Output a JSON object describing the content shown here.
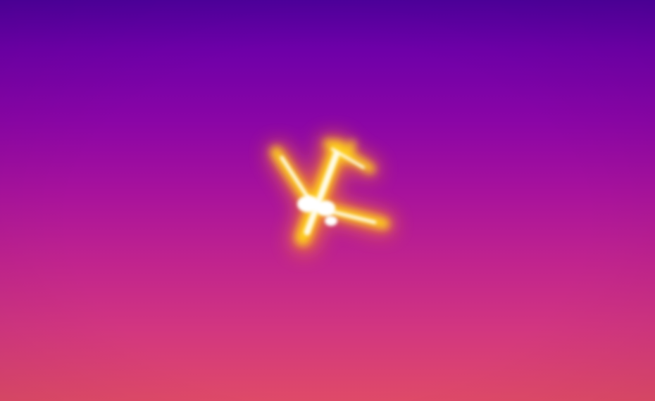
{
  "scene": {
    "subject": "airplane-silhouette",
    "style": "thermal-imaging",
    "palette": {
      "sky_top": "#4e009c",
      "sky_mid": "#a8129c",
      "sky_bottom": "#df4a68",
      "heat_hot": "#fffbe6",
      "heat_warm": "#ffd21a",
      "heat_glow": "#ff8a1e"
    }
  }
}
